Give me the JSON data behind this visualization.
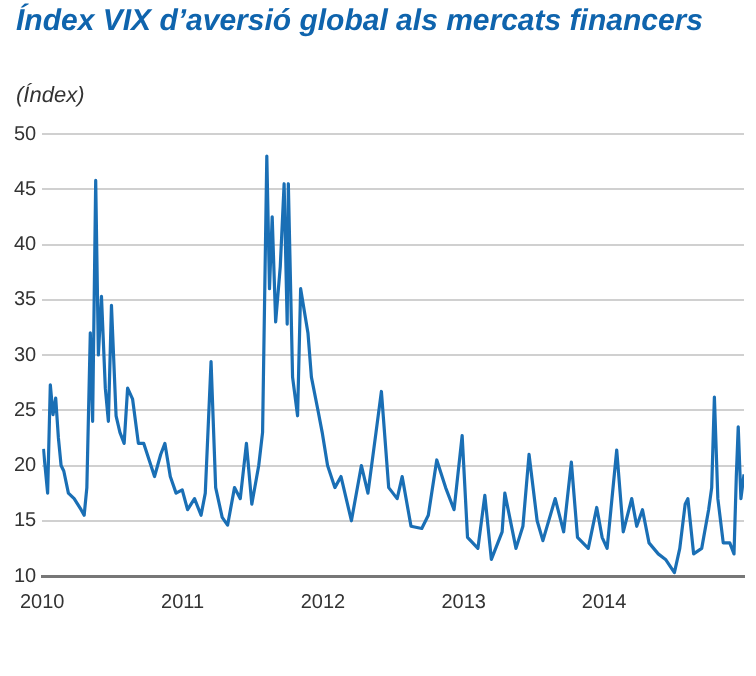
{
  "chart_data": {
    "type": "line",
    "title": "Índex VIX d’aversió global als mercats financers",
    "ylabel": "(Índex)",
    "x": [
      "2010-01-04",
      "2010-01-15",
      "2010-01-22",
      "2010-01-29",
      "2010-02-05",
      "2010-02-12",
      "2010-02-19",
      "2010-02-26",
      "2010-03-10",
      "2010-03-25",
      "2010-04-12",
      "2010-04-20",
      "2010-04-27",
      "2010-05-06",
      "2010-05-12",
      "2010-05-20",
      "2010-05-27",
      "2010-06-04",
      "2010-06-14",
      "2010-06-22",
      "2010-06-30",
      "2010-07-12",
      "2010-07-22",
      "2010-08-02",
      "2010-08-11",
      "2010-08-24",
      "2010-09-08",
      "2010-09-22",
      "2010-10-06",
      "2010-10-20",
      "2010-11-05",
      "2010-11-16",
      "2010-11-30",
      "2010-12-15",
      "2010-12-31",
      "2011-01-14",
      "2011-02-01",
      "2011-02-18",
      "2011-03-01",
      "2011-03-16",
      "2011-03-28",
      "2011-04-14",
      "2011-04-28",
      "2011-05-16",
      "2011-05-31",
      "2011-06-16",
      "2011-06-30",
      "2011-07-18",
      "2011-07-28",
      "2011-08-08",
      "2011-08-15",
      "2011-08-22",
      "2011-08-31",
      "2011-09-12",
      "2011-09-22",
      "2011-09-30",
      "2011-10-03",
      "2011-10-14",
      "2011-10-27",
      "2011-11-04",
      "2011-11-23",
      "2011-12-02",
      "2011-12-19",
      "2011-12-30",
      "2012-01-13",
      "2012-02-01",
      "2012-02-17",
      "2012-03-15",
      "2012-04-10",
      "2012-04-27",
      "2012-05-18",
      "2012-06-01",
      "2012-06-20",
      "2012-07-12",
      "2012-07-25",
      "2012-08-17",
      "2012-09-14",
      "2012-10-01",
      "2012-10-23",
      "2012-11-15",
      "2012-12-07",
      "2012-12-28",
      "2013-01-11",
      "2013-02-07",
      "2013-02-25",
      "2013-03-14",
      "2013-04-11",
      "2013-04-18",
      "2013-05-17",
      "2013-06-04",
      "2013-06-20",
      "2013-07-11",
      "2013-07-26",
      "2013-08-27",
      "2013-09-18",
      "2013-10-08",
      "2013-10-24",
      "2013-11-21",
      "2013-12-13",
      "2013-12-27",
      "2014-01-09",
      "2014-02-03",
      "2014-02-20",
      "2014-03-14",
      "2014-03-27",
      "2014-04-11",
      "2014-04-28",
      "2014-05-22",
      "2014-06-10",
      "2014-07-03",
      "2014-07-17",
      "2014-07-31",
      "2014-08-07",
      "2014-08-22",
      "2014-09-12",
      "2014-09-30",
      "2014-10-08",
      "2014-10-15",
      "2014-10-24",
      "2014-11-07",
      "2014-11-24",
      "2014-12-05",
      "2014-12-11",
      "2014-12-16",
      "2014-12-23",
      "2014-12-31"
    ],
    "series": [
      {
        "color": "#1a6fb5",
        "values": [
          21.5,
          17.5,
          27.3,
          24.6,
          26.1,
          22.5,
          20,
          19.5,
          17.5,
          17,
          16,
          15.5,
          18,
          32,
          24,
          45.8,
          30,
          35.3,
          27,
          24,
          34.5,
          24.5,
          23,
          22,
          27,
          26,
          22,
          22,
          20.5,
          19,
          21,
          22,
          19,
          17.5,
          17.8,
          16,
          17,
          15.5,
          17.5,
          29.4,
          18,
          15.3,
          14.6,
          18,
          17,
          22,
          16.5,
          20,
          23,
          48,
          36,
          42.5,
          33,
          38,
          45.5,
          32.8,
          45.5,
          28,
          24.5,
          36,
          32,
          28,
          25,
          23,
          20,
          18,
          19,
          15,
          20,
          17.5,
          23,
          26.7,
          18,
          17,
          19,
          14.5,
          14.3,
          15.5,
          20.5,
          18,
          16,
          22.7,
          13.5,
          12.5,
          17.3,
          11.5,
          14,
          17.5,
          12.5,
          14.5,
          21,
          15,
          13.2,
          17,
          14,
          20.3,
          13.5,
          12.5,
          16.2,
          13.5,
          12.5,
          21.4,
          14,
          17,
          14.5,
          16,
          13,
          12,
          11.5,
          10.3,
          12.5,
          16.5,
          17,
          12,
          12.5,
          16,
          18,
          26.2,
          17,
          13,
          13,
          12,
          19,
          23.5,
          17,
          19.2
        ]
      }
    ],
    "xlim": [
      "2010-01-01",
      "2014-12-31"
    ],
    "xticks": [
      {
        "value": "2010-01-01",
        "label": "2010"
      },
      {
        "value": "2011-01-01",
        "label": "2011"
      },
      {
        "value": "2012-01-01",
        "label": "2012"
      },
      {
        "value": "2013-01-01",
        "label": "2013"
      },
      {
        "value": "2014-01-01",
        "label": "2014"
      }
    ],
    "ylim": [
      10,
      50
    ],
    "yticks": [
      10,
      15,
      20,
      25,
      30,
      35,
      40,
      45,
      50
    ],
    "grid": "y",
    "legend": false,
    "marker": "none",
    "line_style": "solid"
  }
}
